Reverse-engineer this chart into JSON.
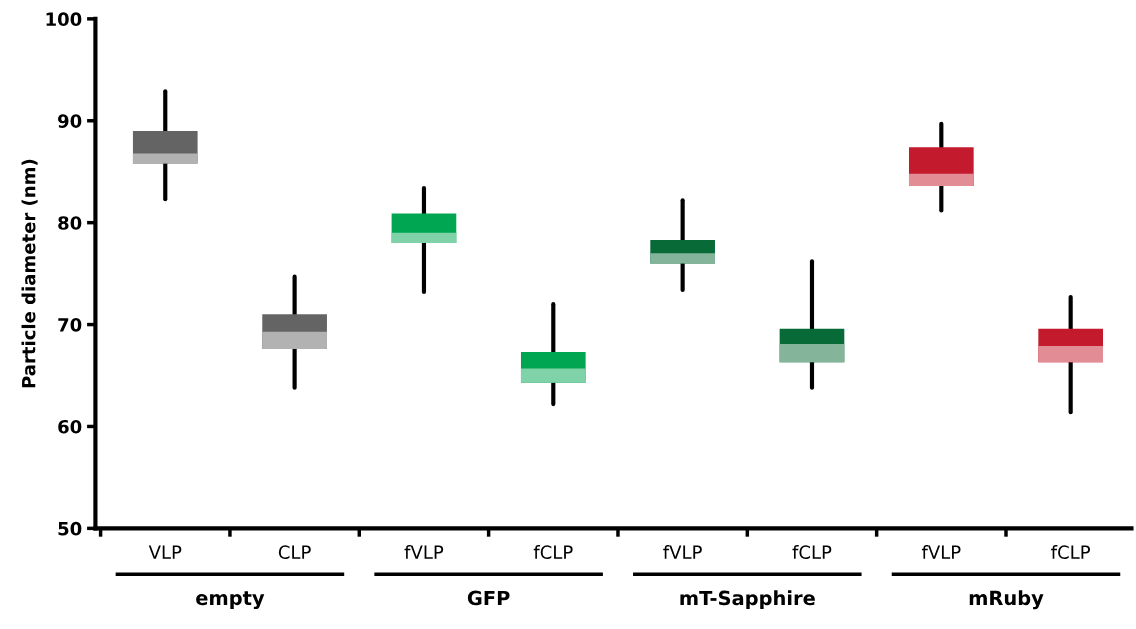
{
  "chart_data": {
    "type": "box",
    "ylabel": "Particle diameter (nm)",
    "categories": [
      "VLP",
      "CLP",
      "fVLP",
      "fCLP",
      "fVLP",
      "fCLP",
      "fVLP",
      "fCLP"
    ],
    "annotations": [
      "empty",
      "GFP",
      "mT-Sapphire",
      "mRuby"
    ],
    "colors": [
      "#646464",
      "#646464",
      "#00a651",
      "#00a651",
      "#086b37",
      "#086b37",
      "#c41a2e",
      "#c41a2e"
    ],
    "boxes": [
      {
        "low": 82.3,
        "q1": 85.8,
        "median": 86.8,
        "q3": 89.0,
        "high": 92.9
      },
      {
        "low": 63.8,
        "q1": 67.6,
        "median": 69.3,
        "q3": 71.0,
        "high": 74.7
      },
      {
        "low": 73.2,
        "q1": 78.0,
        "median": 79.0,
        "q3": 80.9,
        "high": 83.4
      },
      {
        "low": 62.2,
        "q1": 64.3,
        "median": 65.7,
        "q3": 67.3,
        "high": 72.0
      },
      {
        "low": 73.4,
        "q1": 76.0,
        "median": 77.0,
        "q3": 78.3,
        "high": 82.2
      },
      {
        "low": 63.8,
        "q1": 66.3,
        "median": 68.1,
        "q3": 69.6,
        "high": 76.2
      },
      {
        "low": 81.2,
        "q1": 83.6,
        "median": 84.8,
        "q3": 87.4,
        "high": 89.7
      },
      {
        "low": 61.4,
        "q1": 66.3,
        "median": 67.9,
        "q3": 69.6,
        "high": 72.7
      }
    ],
    "ylim": [
      50,
      100
    ],
    "yticks": [
      50,
      60,
      70,
      80,
      90,
      100
    ],
    "grid": false,
    "legend": false
  }
}
